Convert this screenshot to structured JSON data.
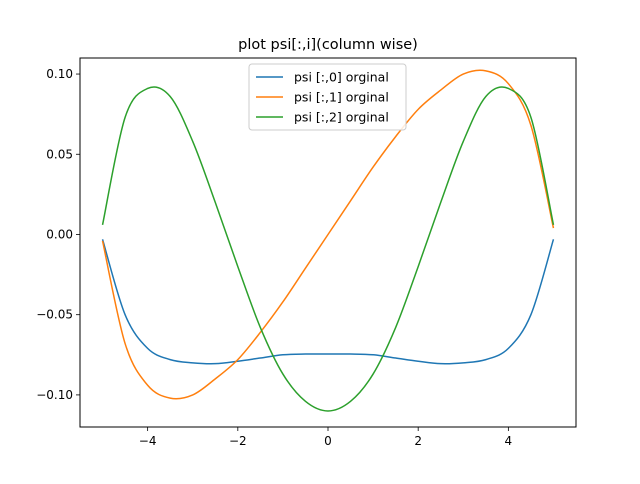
{
  "chart_data": {
    "type": "line",
    "title": "plot psi[:,i](column wise)",
    "xlabel": "",
    "ylabel": "",
    "xlim": [
      -5.5,
      5.5
    ],
    "ylim": [
      -0.12,
      0.11
    ],
    "xticks": [
      -4,
      -2,
      0,
      2,
      4
    ],
    "xtick_labels": [
      "−4",
      "−2",
      "0",
      "2",
      "4"
    ],
    "yticks": [
      -0.1,
      -0.05,
      0.0,
      0.05,
      0.1
    ],
    "ytick_labels": [
      "−0.10",
      "−0.05",
      "0.00",
      "0.05",
      "0.10"
    ],
    "grid": false,
    "legend_position": "upper center",
    "x": [
      -5.0,
      -4.5,
      -4.0,
      -3.5,
      -3.0,
      -2.5,
      -2.0,
      -1.5,
      -1.0,
      -0.5,
      0.0,
      0.5,
      1.0,
      1.5,
      2.0,
      2.5,
      3.0,
      3.5,
      4.0,
      4.5,
      5.0
    ],
    "series": [
      {
        "name": "psi [:,0] orginal",
        "color": "#1f77b4",
        "values": [
          -0.003,
          -0.05,
          -0.071,
          -0.078,
          -0.08,
          -0.0805,
          -0.079,
          -0.077,
          -0.075,
          -0.0745,
          -0.0745,
          -0.0745,
          -0.075,
          -0.077,
          -0.079,
          -0.0805,
          -0.08,
          -0.078,
          -0.071,
          -0.05,
          -0.003
        ]
      },
      {
        "name": "psi [:,1] orginal",
        "color": "#ff7f0e",
        "values": [
          -0.004,
          -0.068,
          -0.094,
          -0.102,
          -0.1,
          -0.09,
          -0.078,
          -0.061,
          -0.042,
          -0.021,
          0.0,
          0.021,
          0.042,
          0.061,
          0.078,
          0.09,
          0.1,
          0.102,
          0.094,
          0.068,
          0.004
        ]
      },
      {
        "name": "psi [:,2] orginal",
        "color": "#2ca02c",
        "values": [
          0.006,
          0.073,
          0.091,
          0.086,
          0.058,
          0.02,
          -0.02,
          -0.058,
          -0.087,
          -0.104,
          -0.11,
          -0.104,
          -0.087,
          -0.058,
          -0.02,
          0.02,
          0.058,
          0.086,
          0.091,
          0.073,
          0.006
        ]
      }
    ]
  }
}
